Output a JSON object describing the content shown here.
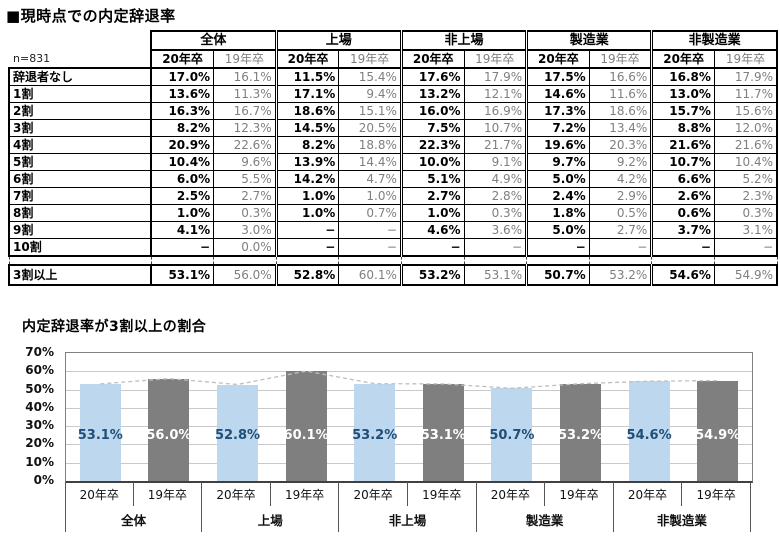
{
  "page": {
    "table_title": "■現時点での内定辞退率",
    "sample_label": "n=831",
    "chart_title": "内定辞退率が3割以上の割合"
  },
  "table": {
    "groups": [
      "全体",
      "上場",
      "非上場",
      "製造業",
      "非製造業"
    ],
    "sub_columns": [
      "20年卒",
      "19年卒"
    ],
    "rows": [
      {
        "label": "辞退者なし",
        "values": [
          "17.0%",
          "16.1%",
          "11.5%",
          "15.4%",
          "17.6%",
          "17.9%",
          "17.5%",
          "16.6%",
          "16.8%",
          "17.9%"
        ]
      },
      {
        "label": "1割",
        "values": [
          "13.6%",
          "11.3%",
          "17.1%",
          "9.4%",
          "13.2%",
          "12.1%",
          "14.6%",
          "11.6%",
          "13.0%",
          "11.7%"
        ]
      },
      {
        "label": "2割",
        "values": [
          "16.3%",
          "16.7%",
          "18.6%",
          "15.1%",
          "16.0%",
          "16.9%",
          "17.3%",
          "18.6%",
          "15.7%",
          "15.6%"
        ]
      },
      {
        "label": "3割",
        "values": [
          "8.2%",
          "12.3%",
          "14.5%",
          "20.5%",
          "7.5%",
          "10.7%",
          "7.2%",
          "13.4%",
          "8.8%",
          "12.0%"
        ]
      },
      {
        "label": "4割",
        "values": [
          "20.9%",
          "22.6%",
          "8.2%",
          "18.8%",
          "22.3%",
          "21.7%",
          "19.6%",
          "20.3%",
          "21.6%",
          "21.6%"
        ]
      },
      {
        "label": "5割",
        "values": [
          "10.4%",
          "9.6%",
          "13.9%",
          "14.4%",
          "10.0%",
          "9.1%",
          "9.7%",
          "9.2%",
          "10.7%",
          "10.4%"
        ]
      },
      {
        "label": "6割",
        "values": [
          "6.0%",
          "5.5%",
          "14.2%",
          "4.7%",
          "5.1%",
          "4.9%",
          "5.0%",
          "4.2%",
          "6.6%",
          "5.2%"
        ]
      },
      {
        "label": "7割",
        "values": [
          "2.5%",
          "2.7%",
          "1.0%",
          "1.0%",
          "2.7%",
          "2.8%",
          "2.4%",
          "2.9%",
          "2.6%",
          "2.3%"
        ]
      },
      {
        "label": "8割",
        "values": [
          "1.0%",
          "0.3%",
          "1.0%",
          "0.7%",
          "1.0%",
          "0.3%",
          "1.8%",
          "0.5%",
          "0.6%",
          "0.3%"
        ]
      },
      {
        "label": "9割",
        "values": [
          "4.1%",
          "3.0%",
          "−",
          "−",
          "4.6%",
          "3.6%",
          "5.0%",
          "2.7%",
          "3.7%",
          "3.1%"
        ]
      },
      {
        "label": "10割",
        "values": [
          "−",
          "0.0%",
          "−",
          "−",
          "−",
          "−",
          "−",
          "−",
          "−",
          "−"
        ]
      }
    ],
    "summary_row": {
      "label": "3割以上",
      "values": [
        "53.1%",
        "56.0%",
        "52.8%",
        "60.1%",
        "53.2%",
        "53.1%",
        "50.7%",
        "53.2%",
        "54.6%",
        "54.9%"
      ]
    }
  },
  "chart_data": {
    "type": "bar",
    "title": "内定辞退率が3割以上の割合",
    "categories": [
      "全体",
      "上場",
      "非上場",
      "製造業",
      "非製造業"
    ],
    "series": [
      {
        "name": "20年卒",
        "values": [
          53.1,
          52.8,
          53.2,
          50.7,
          54.6
        ],
        "color": "#BDD7EE",
        "label_color": "#1F4E79"
      },
      {
        "name": "19年卒",
        "values": [
          56.0,
          60.1,
          53.1,
          53.2,
          54.9
        ],
        "color": "#7F7F7F",
        "label_color": "#FFFFFF"
      }
    ],
    "ylim": [
      0,
      70
    ],
    "ytick_step": 10,
    "ytick_suffix": "%",
    "grid": true,
    "legend_position": "none",
    "connector_line": {
      "style": "dashed",
      "color": "#BFBFBF",
      "connects": "bar tops across all bars"
    },
    "value_label_format": "0.0%"
  }
}
